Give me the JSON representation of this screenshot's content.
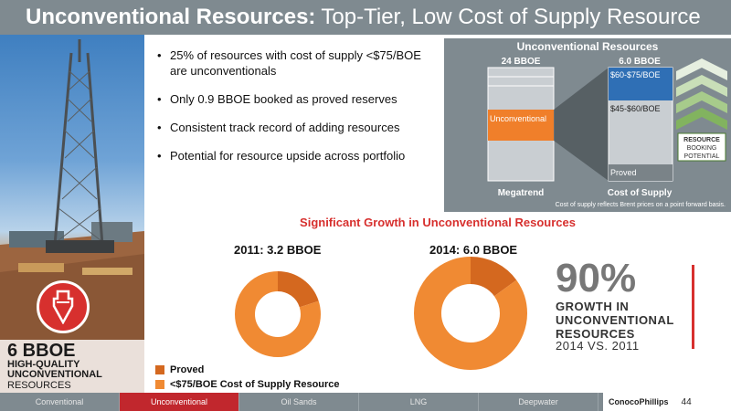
{
  "title": {
    "bold": "Unconventional Resources:",
    "light": "Top-Tier, Low Cost of Supply Resource"
  },
  "photo_badge": {
    "big": "6 BBOE",
    "line1": "HIGH-QUALITY",
    "line2": "UNCONVENTIONAL",
    "line3": "RESOURCES"
  },
  "bullets": [
    "25% of resources with cost of supply <$75/BOE are unconventionals",
    "Only 0.9 BBOE booked as proved reserves",
    "Consistent track record of adding resources",
    "Potential for resource upside across portfolio"
  ],
  "chart_data": [
    {
      "type": "bar",
      "title": "Unconventional Resources",
      "categories": [
        "Megatrend",
        "Cost of Supply"
      ],
      "bar_totals": [
        "24 BBOE",
        "6.0 BBOE"
      ],
      "segments": {
        "Megatrend": [
          "Unconventional"
        ],
        "Cost of Supply": [
          "Proved",
          "$45-$60/BOE",
          "$60-$75/BOE"
        ]
      },
      "footnote": "Cost of supply reflects Brent prices on a point forward basis.",
      "side_label": [
        "RESOURCE",
        "BOOKING",
        "POTENTIAL"
      ],
      "colors": {
        "unconventional": "#f07f2a",
        "cost_top": "#2f6fb5",
        "bar": "#c9ced2",
        "proved": "#7a8388"
      }
    },
    {
      "type": "pie",
      "title": "Significant Growth in Unconventional Resources",
      "charts": [
        {
          "label": "2011: 3.2 BBOE",
          "slices": [
            {
              "name": "Proved",
              "value": 0.2
            },
            {
              "name": "<$75/BOE Cost of Supply Resource",
              "value": 0.8
            }
          ]
        },
        {
          "label": "2014: 6.0 BBOE",
          "slices": [
            {
              "name": "Proved",
              "value": 0.15
            },
            {
              "name": "<$75/BOE Cost of Supply Resource",
              "value": 0.85
            }
          ]
        }
      ],
      "legend": [
        "Proved",
        "<$75/BOE Cost of Supply Resource"
      ],
      "colors": {
        "proved": "#d4681f",
        "resource": "#f08a33"
      }
    }
  ],
  "stat": {
    "value": "90%",
    "line1": "GROWTH IN",
    "line2": "UNCONVENTIONAL",
    "line3": "RESOURCES",
    "line4": "2014 VS. 2011"
  },
  "footer": {
    "tabs": [
      "Conventional",
      "Unconventional",
      "Oil Sands",
      "LNG",
      "Deepwater"
    ],
    "active_tab": "Unconventional",
    "logo": "ConocoPhillips",
    "page_number": "44"
  }
}
